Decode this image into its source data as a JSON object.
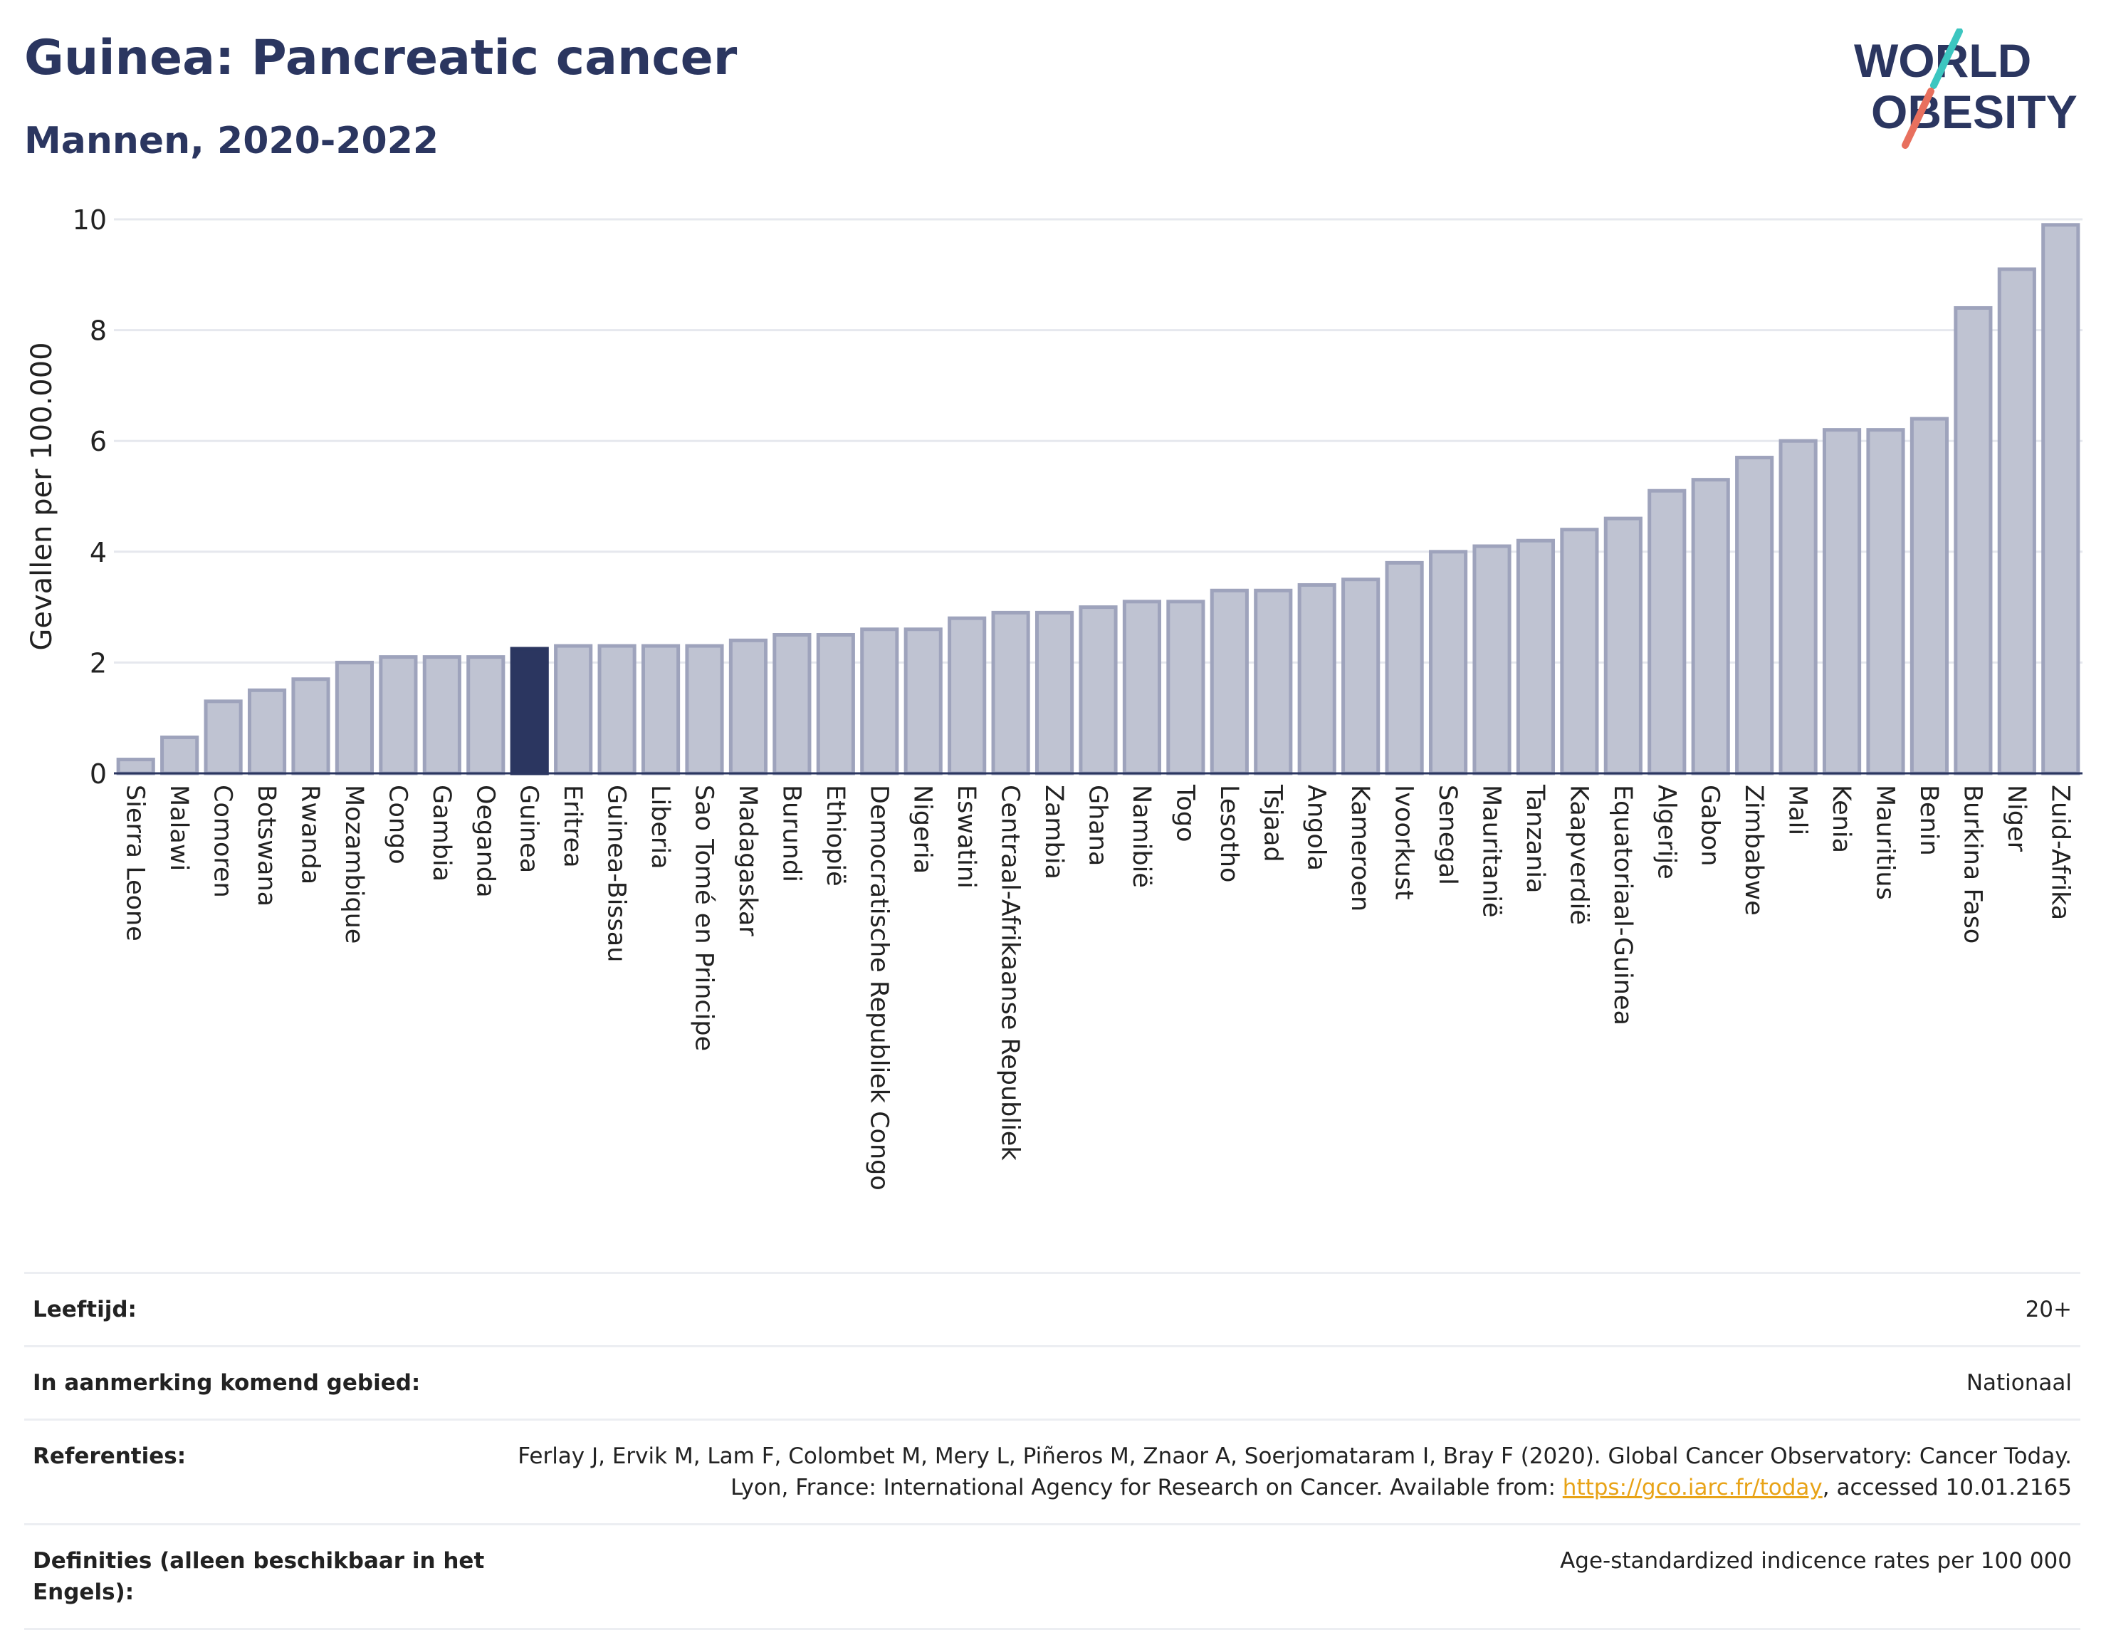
{
  "header": {
    "title": "Guinea: Pancreatic cancer",
    "subtitle": "Mannen, 2020-2022",
    "logo_line1": "WORLD",
    "logo_line2": "OBESITY"
  },
  "colors": {
    "title": "#2b3660",
    "bar_fill": "#bfc3d2",
    "bar_stroke": "#9ea3bc",
    "highlight": "#2b3660",
    "logo_teal": "#3cc6c0",
    "logo_coral": "#e8705e",
    "link": "#e8a317"
  },
  "chart_data": {
    "type": "bar",
    "ylabel": "Gevallen per 100.000",
    "xlabel": "",
    "ylim": [
      0,
      10
    ],
    "yticks": [
      0,
      2,
      4,
      6,
      8,
      10
    ],
    "grid": true,
    "highlight": "Guinea",
    "categories": [
      "Sierra Leone",
      "Malawi",
      "Comoren",
      "Botswana",
      "Rwanda",
      "Mozambique",
      "Congo",
      "Gambia",
      "Oeganda",
      "Guinea",
      "Eritrea",
      "Guinea-Bissau",
      "Liberia",
      "Sao Tomé en Principe",
      "Madagaskar",
      "Burundi",
      "Ethiopië",
      "Democratische Republiek Congo",
      "Nigeria",
      "Eswatini",
      "Centraal-Afrikaanse Republiek",
      "Zambia",
      "Ghana",
      "Namibië",
      "Togo",
      "Lesotho",
      "Tsjaad",
      "Angola",
      "Kameroen",
      "Ivoorkust",
      "Senegal",
      "Mauritanië",
      "Tanzania",
      "Kaapverdië",
      "Equatoriaal-Guinea",
      "Algerije",
      "Gabon",
      "Zimbabwe",
      "Mali",
      "Kenia",
      "Mauritius",
      "Benin",
      "Burkina Faso",
      "Niger",
      "Zuid-Afrika"
    ],
    "values": [
      0.25,
      0.65,
      1.3,
      1.5,
      1.7,
      2.0,
      2.1,
      2.1,
      2.1,
      2.25,
      2.3,
      2.3,
      2.3,
      2.3,
      2.4,
      2.5,
      2.5,
      2.6,
      2.6,
      2.8,
      2.9,
      2.9,
      3.0,
      3.1,
      3.1,
      3.3,
      3.3,
      3.4,
      3.5,
      3.8,
      4.0,
      4.1,
      4.2,
      4.4,
      4.6,
      5.1,
      5.3,
      5.7,
      6.0,
      6.2,
      6.2,
      6.4,
      8.4,
      9.1,
      9.9
    ]
  },
  "meta": {
    "age_label": "Leeftijd:",
    "age_value": "20+",
    "area_label": "In aanmerking komend gebied:",
    "area_value": "Nationaal",
    "ref_label": "Referenties:",
    "ref_text_1": "Ferlay J, Ervik M, Lam F, Colombet M, Mery L, Piñeros M, Znaor A, Soerjomataram I, Bray F (2020). Global Cancer Observatory: Cancer Today. Lyon, France: International Agency for Research on Cancer. Available from: ",
    "ref_link": "https://gco.iarc.fr/today",
    "ref_text_2": ", accessed 10.01.2165",
    "def_label": "Definities (alleen beschikbaar in het Engels):",
    "def_value": "Age-standardized indicence rates per 100 000"
  }
}
